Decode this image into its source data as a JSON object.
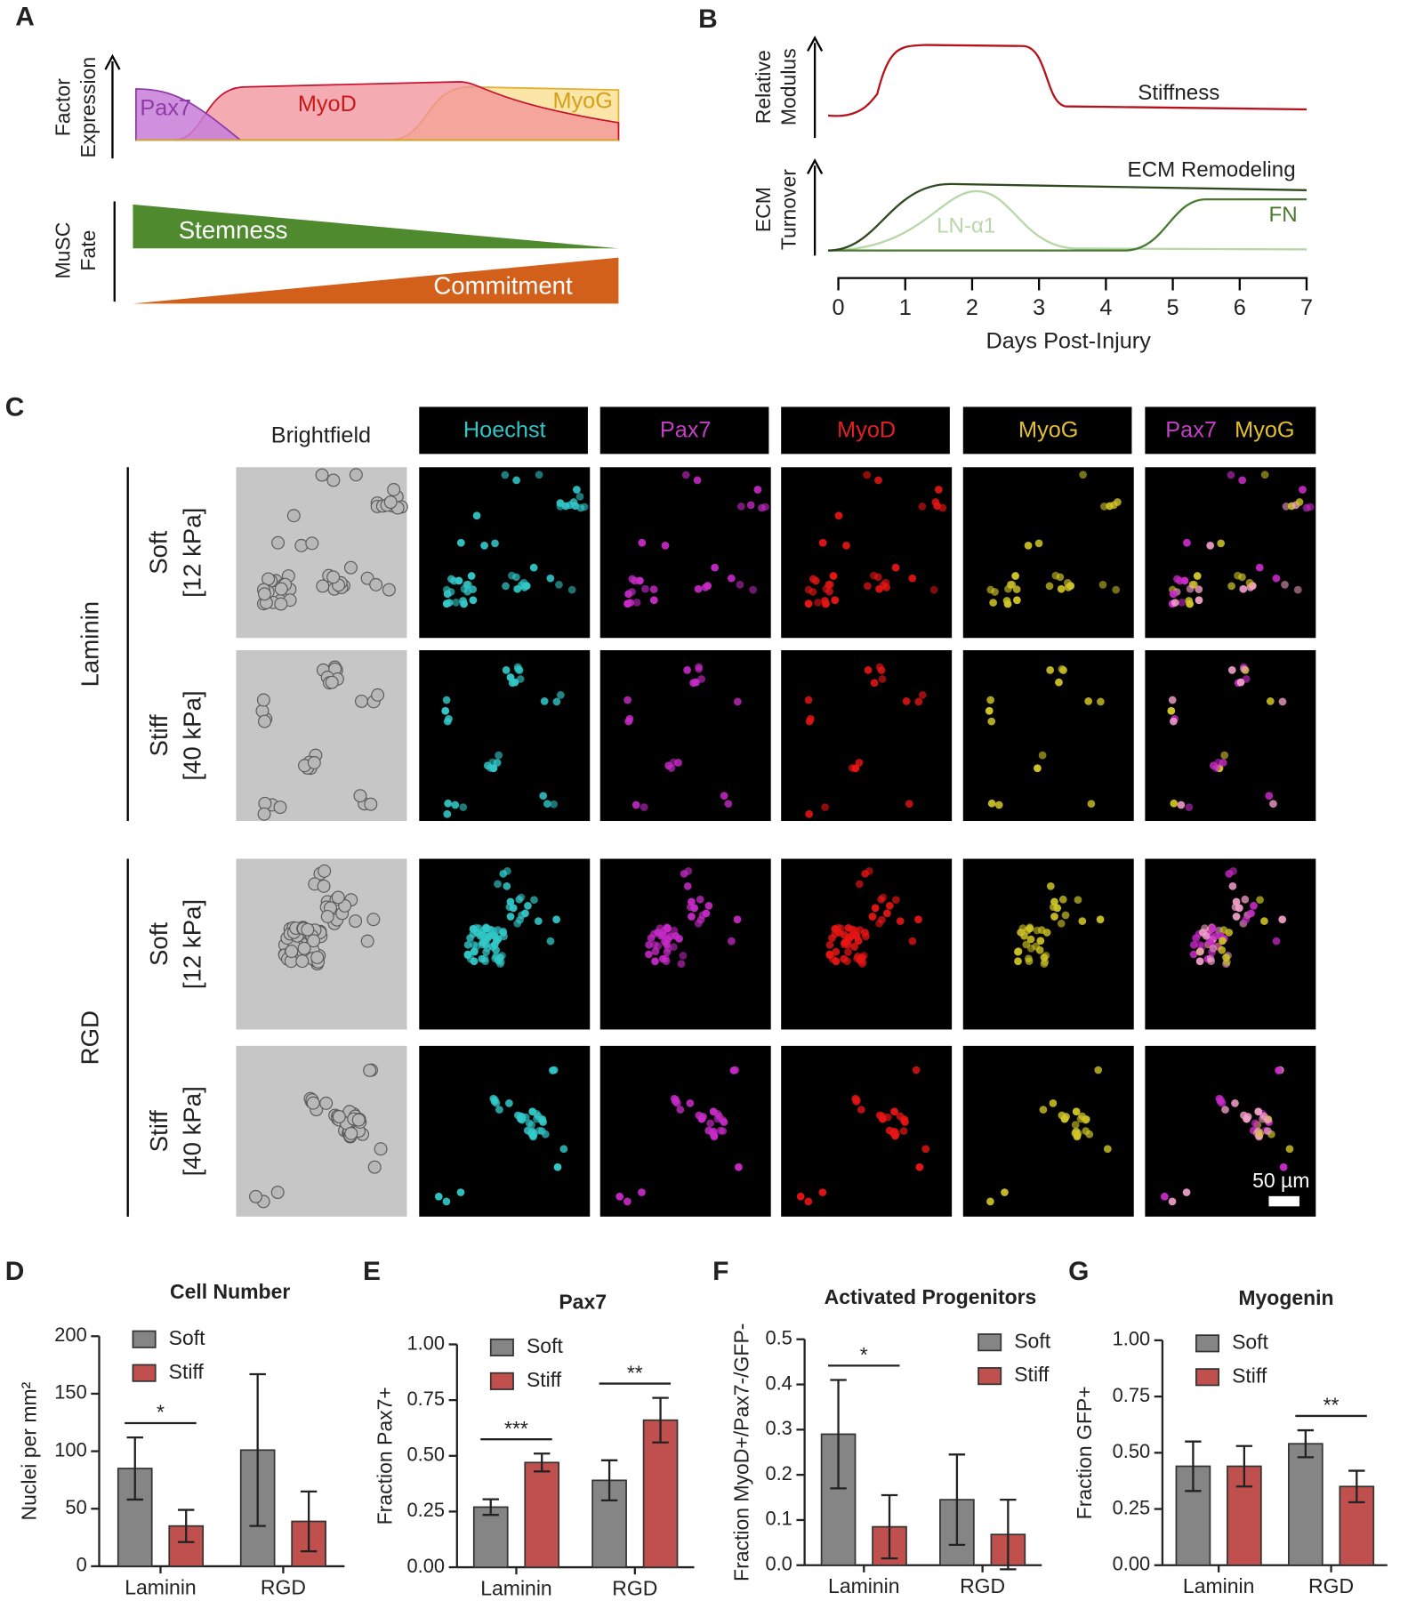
{
  "panel_labels": [
    "A",
    "B",
    "C",
    "D",
    "E",
    "F",
    "G"
  ],
  "panel_a": {
    "expression_label": [
      "Factor",
      "Expression"
    ],
    "factors": [
      "Pax7",
      "MyoD",
      "MyoG"
    ],
    "fate_label": [
      "MuSC",
      "Fate"
    ],
    "fates": [
      "Stemness",
      "Commitment"
    ]
  },
  "panel_b": {
    "modulus_label": [
      "Relative",
      "Modulus"
    ],
    "turnover_label": [
      "ECM",
      "Turnover"
    ],
    "curves": [
      "Stiffness",
      "ECM Remodeling",
      "LN-α1",
      "FN"
    ],
    "xlabel": "Days Post-Injury",
    "xlim": [
      0,
      7
    ],
    "xticks": [
      0,
      1,
      2,
      3,
      4,
      5,
      6,
      7
    ]
  },
  "panel_c": {
    "columns": [
      "Brightfield",
      "Hoechst",
      "Pax7",
      "MyoD",
      "MyoG"
    ],
    "merge": [
      "Pax7",
      "MyoG"
    ],
    "groups": [
      {
        "name": "Laminin",
        "rows": [
          [
            "Soft",
            "[12 kPa]"
          ],
          [
            "Stiff",
            "[40 kPa]"
          ]
        ]
      },
      {
        "name": "RGD",
        "rows": [
          [
            "Soft",
            "[12 kPa]"
          ],
          [
            "Stiff",
            "[40 kPa]"
          ]
        ]
      }
    ],
    "scale_bar": "50 µm"
  },
  "chart_data": [
    {
      "type": "bar",
      "title": "Cell Number",
      "ylabel": "Nuclei per mm²",
      "categories": [
        "Laminin",
        "RGD"
      ],
      "series": [
        {
          "name": "Soft",
          "color": "#858585",
          "values": [
            85,
            101
          ],
          "errors": [
            27,
            66
          ]
        },
        {
          "name": "Stiff",
          "color": "#c0504d",
          "values": [
            35,
            39
          ],
          "errors": [
            14,
            26
          ]
        }
      ],
      "significance": [
        "*",
        null
      ],
      "ylim": [
        0,
        200
      ],
      "yticks": [
        0,
        50,
        100,
        150,
        200
      ],
      "legend": "upper left"
    },
    {
      "type": "bar",
      "title": "Pax7",
      "ylabel": "Fraction Pax7+",
      "categories": [
        "Laminin",
        "RGD"
      ],
      "series": [
        {
          "name": "Soft",
          "color": "#858585",
          "values": [
            0.27,
            0.39
          ],
          "errors": [
            0.035,
            0.09
          ]
        },
        {
          "name": "Stiff",
          "color": "#c0504d",
          "values": [
            0.47,
            0.66
          ],
          "errors": [
            0.04,
            0.1
          ]
        }
      ],
      "significance": [
        "***",
        "**"
      ],
      "ylim": [
        0,
        1
      ],
      "yticks": [
        {
          "value": 0,
          "label": "0.00"
        },
        {
          "value": 0.25,
          "label": "0.25"
        },
        {
          "value": 0.5,
          "label": "0.50"
        },
        {
          "value": 0.75,
          "label": "0.75"
        },
        {
          "value": 1,
          "label": "1.00"
        }
      ],
      "legend": "upper left"
    },
    {
      "type": "bar",
      "title": "Activated Progenitors",
      "ylabel": "Fraction MyoD+/Pax7-/GFP-",
      "categories": [
        "Laminin",
        "RGD"
      ],
      "series": [
        {
          "name": "Soft",
          "color": "#858585",
          "values": [
            0.29,
            0.145
          ],
          "errors": [
            0.12,
            0.1
          ]
        },
        {
          "name": "Stiff",
          "color": "#c0504d",
          "values": [
            0.085,
            0.068
          ],
          "errors": [
            0.07,
            0.077
          ]
        }
      ],
      "significance": [
        "*",
        null
      ],
      "ylim": [
        0,
        0.5
      ],
      "yticks": [
        {
          "value": 0,
          "label": "0.0"
        },
        0.1,
        0.2,
        0.3,
        0.4,
        0.5
      ],
      "legend": "upper right"
    },
    {
      "type": "bar",
      "title": "Myogenin",
      "ylabel": "Fraction GFP+",
      "categories": [
        "Laminin",
        "RGD"
      ],
      "series": [
        {
          "name": "Soft",
          "color": "#858585",
          "values": [
            0.44,
            0.54
          ],
          "errors": [
            0.11,
            0.06
          ]
        },
        {
          "name": "Stiff",
          "color": "#c0504d",
          "values": [
            0.44,
            0.35
          ],
          "errors": [
            0.09,
            0.07
          ]
        }
      ],
      "significance": [
        null,
        "**"
      ],
      "ylim": [
        0,
        1
      ],
      "yticks": [
        {
          "value": 0,
          "label": "0.00"
        },
        {
          "value": 0.25,
          "label": "0.25"
        },
        {
          "value": 0.5,
          "label": "0.50"
        },
        {
          "value": 0.75,
          "label": "0.75"
        },
        {
          "value": 1,
          "label": "1.00"
        }
      ],
      "legend": "upper left"
    }
  ]
}
